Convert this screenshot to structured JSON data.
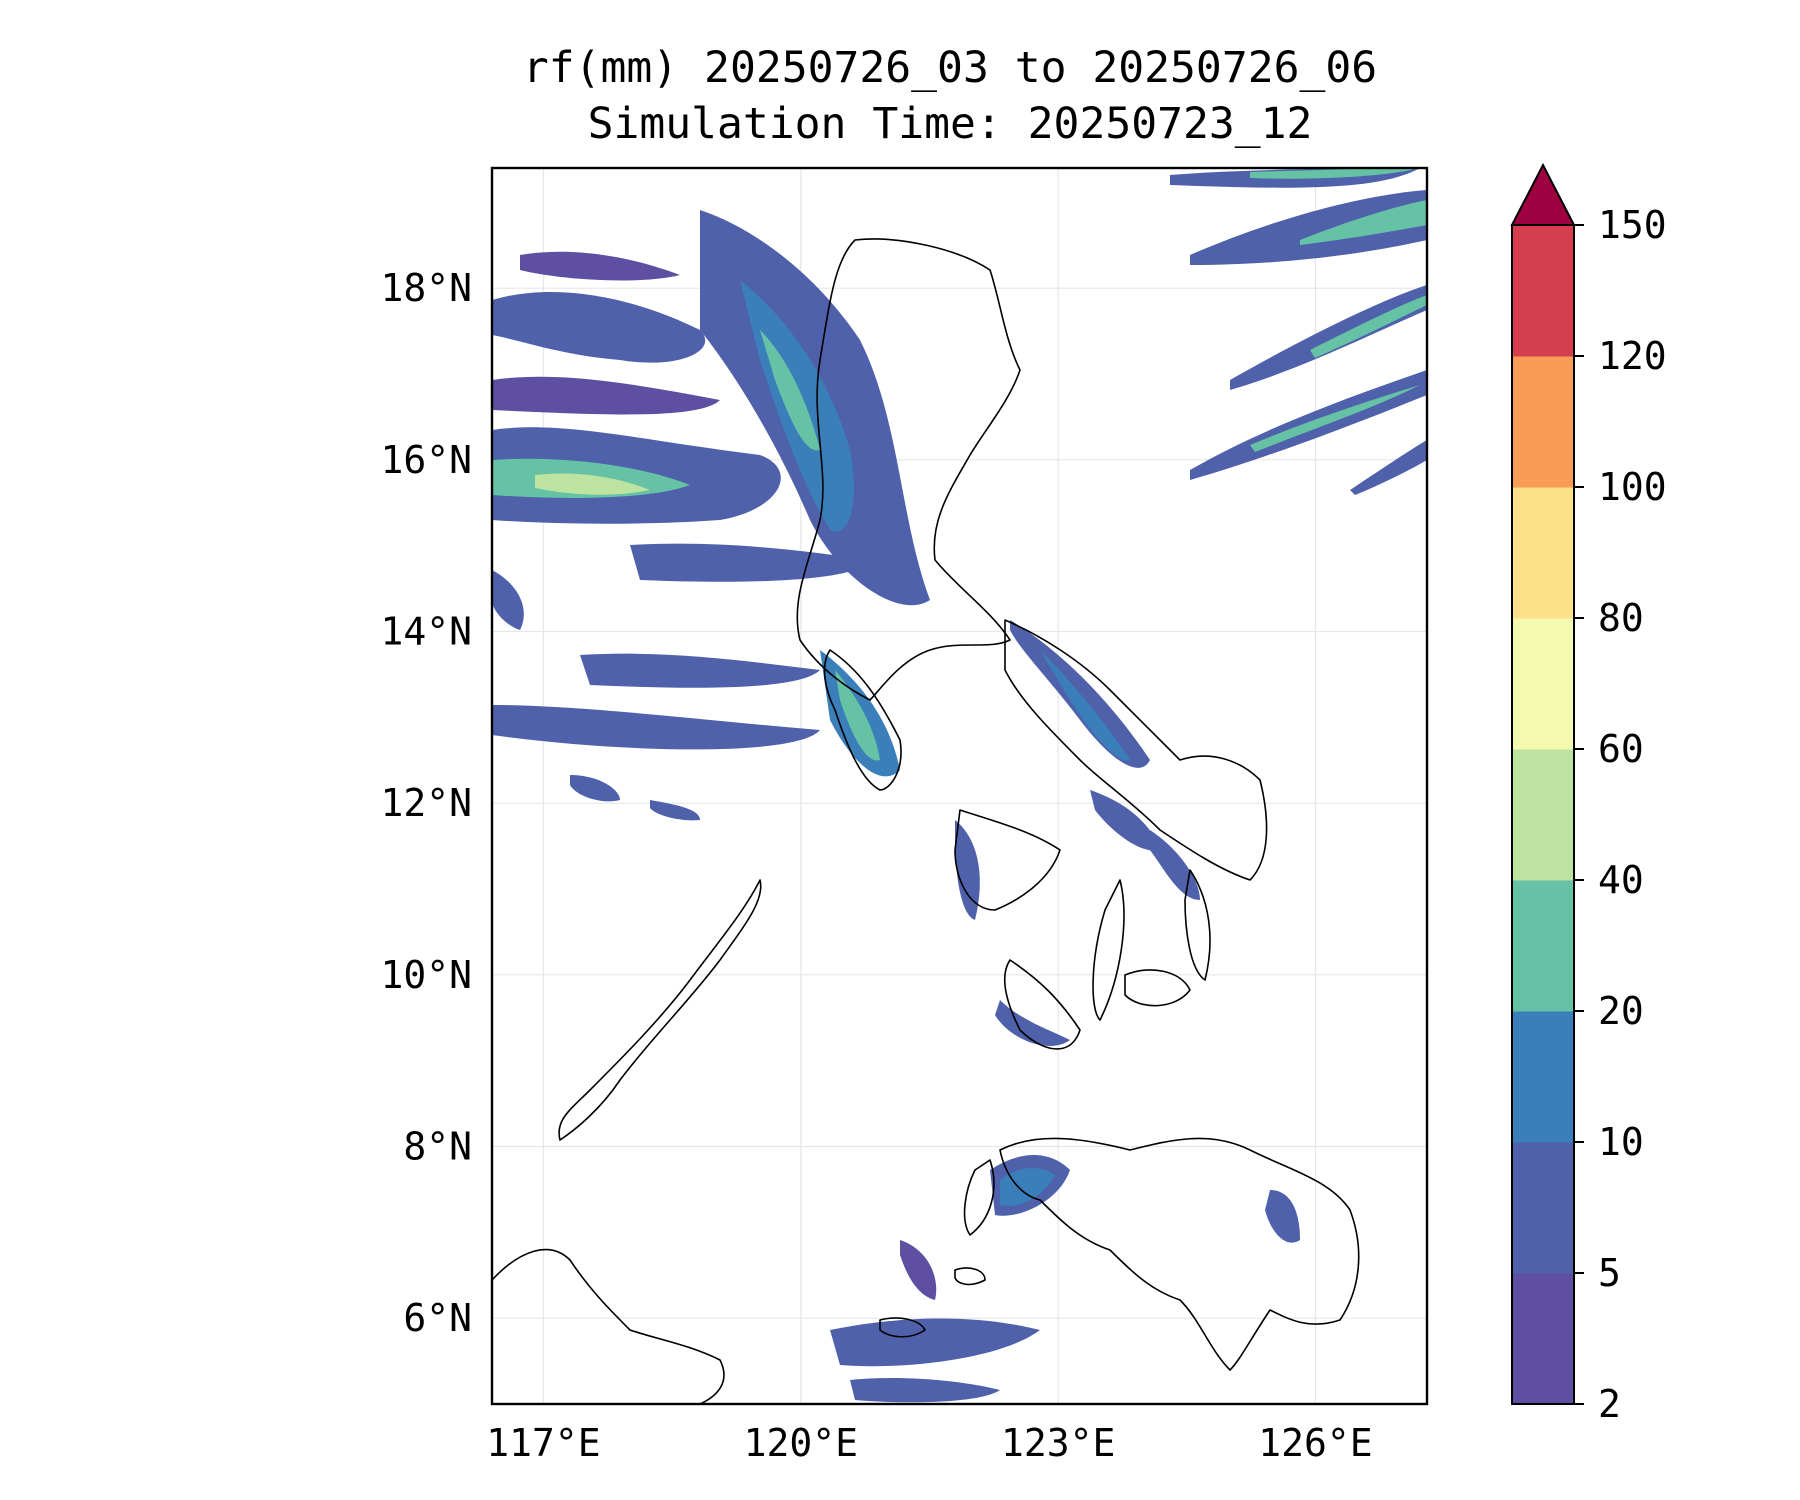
{
  "title": {
    "line1": "rf(mm) 20250726_03 to 20250726_06",
    "line2": "Simulation Time: 20250723_12"
  },
  "map": {
    "lon_range": [
      116.4,
      127.3
    ],
    "lat_range": [
      5.0,
      19.4
    ],
    "lat_ticks": [
      {
        "value": 18,
        "label": "18°N"
      },
      {
        "value": 16,
        "label": "16°N"
      },
      {
        "value": 14,
        "label": "14°N"
      },
      {
        "value": 12,
        "label": "12°N"
      },
      {
        "value": 10,
        "label": "10°N"
      },
      {
        "value": 8,
        "label": "8°N"
      },
      {
        "value": 6,
        "label": "6°N"
      }
    ],
    "lon_ticks": [
      {
        "value": 117,
        "label": "117°E"
      },
      {
        "value": 120,
        "label": "120°E"
      },
      {
        "value": 123,
        "label": "123°E"
      },
      {
        "value": 126,
        "label": "126°E"
      }
    ],
    "grid": true
  },
  "colorbar": {
    "extend": "max",
    "extend_color": "#9e0142",
    "levels": [
      {
        "label": "2",
        "color": "#5e4fa2"
      },
      {
        "label": "5",
        "color": "#4f61ab"
      },
      {
        "label": "10",
        "color": "#3a7fb9"
      },
      {
        "label": "20",
        "color": "#66c2a5"
      },
      {
        "label": "40",
        "color": "#bde3a0"
      },
      {
        "label": "60",
        "color": "#f3fab0"
      },
      {
        "label": "80",
        "color": "#fce08a"
      },
      {
        "label": "100",
        "color": "#f99c57"
      },
      {
        "label": "120",
        "color": "#d53e4f"
      },
      {
        "label": "150",
        "color": null
      }
    ]
  }
}
